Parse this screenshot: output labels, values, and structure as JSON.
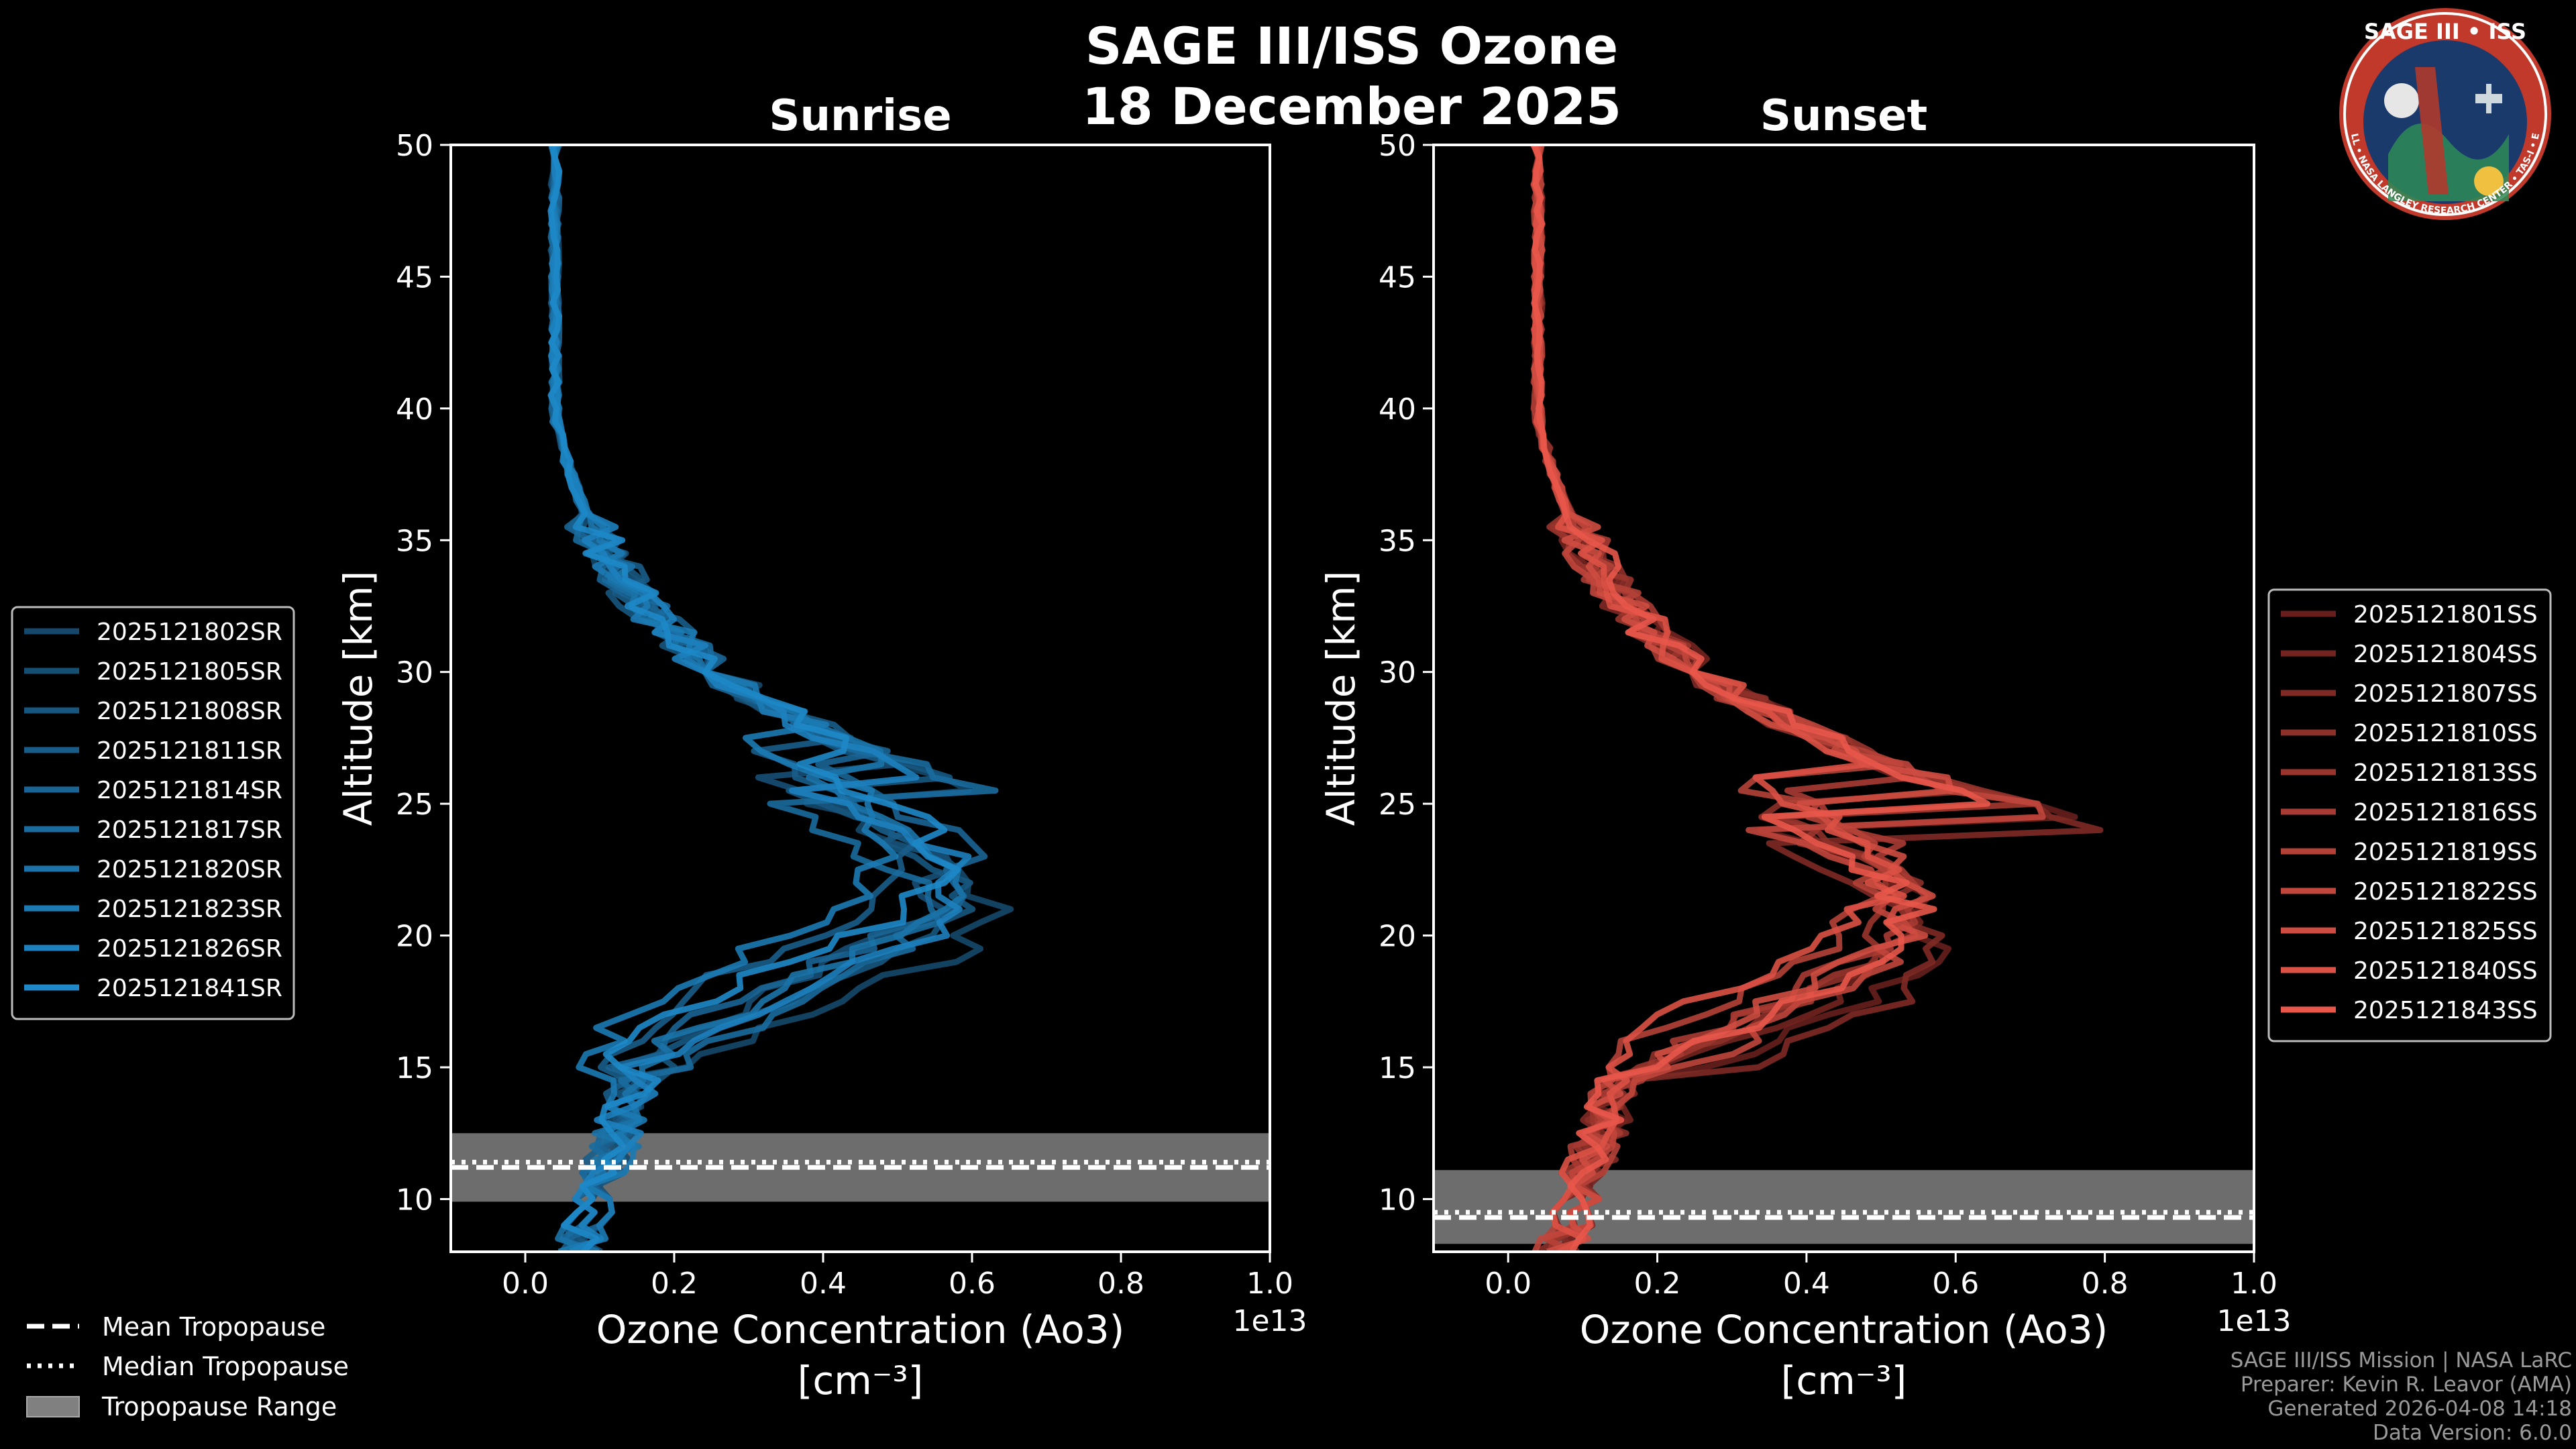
{
  "title_line1": "SAGE III/ISS Ozone",
  "title_line2": "18 December 2025",
  "logo": {
    "lettering": "SAGE III • ISS",
    "ring_text": "BALL • NASA LANGLEY RESEARCH CENTER • TAS-I • ESA",
    "colors": {
      "ring": "#c0392b",
      "inner": "#1a3a6b"
    }
  },
  "credits": [
    "SAGE III/ISS Mission | NASA LaRC",
    "Preparer: Kevin R. Leavor (AMA)",
    "Generated 2026-04-08 14:18",
    "Data Version: 6.0.0"
  ],
  "legend_tropopause": [
    {
      "label": "Mean Tropopause",
      "style": "dashed"
    },
    {
      "label": "Median Tropopause",
      "style": "dotted"
    },
    {
      "label": "Tropopause Range",
      "style": "patch"
    }
  ],
  "chart_data": [
    {
      "type": "line",
      "title": "Sunrise",
      "xlabel": "Ozone Concentration (Ao3)",
      "xlabel_units": "[cm⁻³]",
      "ylabel": "Altitude [km]",
      "xlim": [
        -0.1,
        1.0
      ],
      "ylim": [
        8,
        50
      ],
      "x_scale_label": "1e13",
      "x_ticks": [
        0.0,
        0.2,
        0.4,
        0.6,
        0.8,
        1.0
      ],
      "x_tick_labels": [
        "0.0",
        "0.2",
        "0.4",
        "0.6",
        "0.8",
        "1.0"
      ],
      "y_ticks": [
        10,
        15,
        20,
        25,
        30,
        35,
        40,
        45,
        50
      ],
      "tropopause": {
        "mean": 11.2,
        "median": 11.4,
        "range": [
          9.9,
          12.5
        ],
        "range_color": "#808080"
      },
      "colors": {
        "base": "#1e88c8",
        "dark": "#12324a"
      },
      "series": [
        {
          "name": "2025121802SR",
          "peak": 0.62,
          "peak_alt": 21.0
        },
        {
          "name": "2025121805SR",
          "peak": 0.55,
          "peak_alt": 22.0
        },
        {
          "name": "2025121808SR",
          "peak": 0.58,
          "peak_alt": 21.5
        },
        {
          "name": "2025121811SR",
          "peak": 0.5,
          "peak_alt": 23.0
        },
        {
          "name": "2025121814SR",
          "peak": 0.6,
          "peak_alt": 22.5
        },
        {
          "name": "2025121817SR",
          "peak": 0.53,
          "peak_alt": 21.0
        },
        {
          "name": "2025121820SR",
          "peak": 0.57,
          "peak_alt": 22.0
        },
        {
          "name": "2025121823SR",
          "peak": 0.49,
          "peak_alt": 23.5
        },
        {
          "name": "2025121826SR",
          "peak": 0.59,
          "peak_alt": 21.8
        },
        {
          "name": "2025121841SR",
          "peak": 0.56,
          "peak_alt": 22.8
        }
      ]
    },
    {
      "type": "line",
      "title": "Sunset",
      "xlabel": "Ozone Concentration (Ao3)",
      "xlabel_units": "[cm⁻³]",
      "ylabel": "Altitude [km]",
      "xlim": [
        -0.1,
        1.0
      ],
      "ylim": [
        8,
        50
      ],
      "x_scale_label": "1e13",
      "x_ticks": [
        0.0,
        0.2,
        0.4,
        0.6,
        0.8,
        1.0
      ],
      "x_tick_labels": [
        "0.0",
        "0.2",
        "0.4",
        "0.6",
        "0.8",
        "1.0"
      ],
      "y_ticks": [
        10,
        15,
        20,
        25,
        30,
        35,
        40,
        45,
        50
      ],
      "tropopause": {
        "mean": 9.3,
        "median": 9.5,
        "range": [
          8.3,
          11.1
        ],
        "range_color": "#808080"
      },
      "colors": {
        "base": "#e8574a",
        "dark": "#3a0c0c"
      },
      "series": [
        {
          "name": "2025121801SS",
          "peak": 0.57,
          "peak_alt": 20.0
        },
        {
          "name": "2025121804SS",
          "peak": 0.55,
          "peak_alt": 20.5
        },
        {
          "name": "2025121807SS",
          "peak": 0.58,
          "peak_alt": 19.5
        },
        {
          "name": "2025121810SS",
          "peak": 0.54,
          "peak_alt": 21.0
        },
        {
          "name": "2025121813SS",
          "peak": 0.52,
          "peak_alt": 20.8
        },
        {
          "name": "2025121816SS",
          "peak": 0.56,
          "peak_alt": 21.5
        },
        {
          "name": "2025121819SS",
          "peak": 0.5,
          "peak_alt": 22.0
        },
        {
          "name": "2025121822SS",
          "peak": 0.53,
          "peak_alt": 20.2
        },
        {
          "name": "2025121825SS",
          "peak": 0.55,
          "peak_alt": 21.2
        },
        {
          "name": "2025121840SS",
          "peak": 0.51,
          "peak_alt": 22.2
        },
        {
          "name": "2025121843SS",
          "peak": 0.54,
          "peak_alt": 20.7
        }
      ]
    }
  ]
}
